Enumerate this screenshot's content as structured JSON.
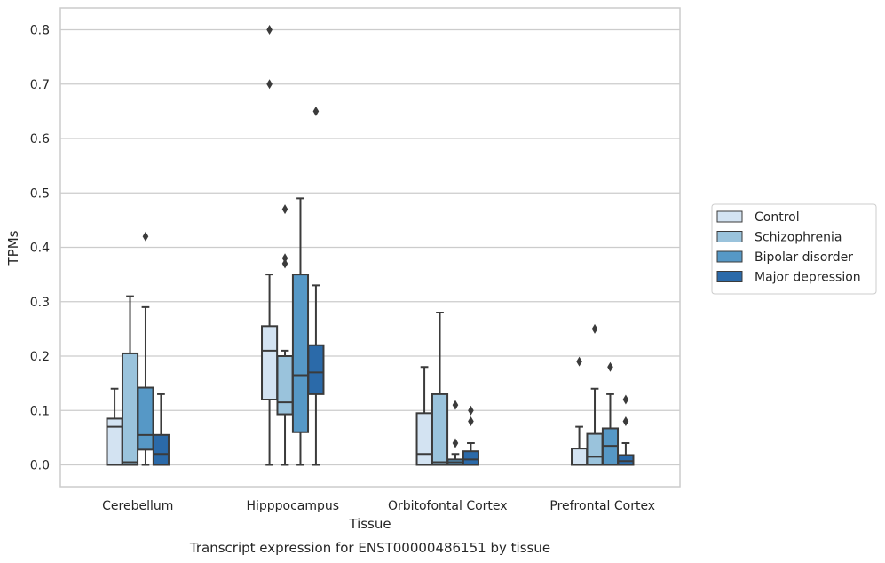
{
  "caption": "Transcript expression for ENST00000486151 by tissue",
  "chart_data": {
    "type": "box",
    "title": "",
    "xlabel": "Tissue",
    "ylabel": "TPMs",
    "ylim": [
      -0.04,
      0.84
    ],
    "yticks": [
      "0.0",
      "0.1",
      "0.2",
      "0.3",
      "0.4",
      "0.5",
      "0.6",
      "0.7",
      "0.8"
    ],
    "grid": "horizontal",
    "legend_position": "right",
    "categories": [
      "Cerebellum",
      "Hipppocampus",
      "Orbitofontal Cortex",
      "Prefrontal Cortex"
    ],
    "series": [
      {
        "name": "Control",
        "color": "#d3e3f2",
        "boxes": [
          {
            "whislo": 0.0,
            "q1": 0.0,
            "med": 0.07,
            "q3": 0.085,
            "whishi": 0.14,
            "fliers": []
          },
          {
            "whislo": 0.0,
            "q1": 0.12,
            "med": 0.21,
            "q3": 0.255,
            "whishi": 0.35,
            "fliers": [
              0.7,
              0.8
            ]
          },
          {
            "whislo": 0.0,
            "q1": 0.0,
            "med": 0.02,
            "q3": 0.095,
            "whishi": 0.18,
            "fliers": []
          },
          {
            "whislo": 0.0,
            "q1": 0.0,
            "med": 0.0,
            "q3": 0.03,
            "whishi": 0.07,
            "fliers": [
              0.19
            ]
          }
        ]
      },
      {
        "name": "Schizophrenia",
        "color": "#9ac3dc",
        "boxes": [
          {
            "whislo": 0.0,
            "q1": 0.0,
            "med": 0.005,
            "q3": 0.205,
            "whishi": 0.31,
            "fliers": []
          },
          {
            "whislo": 0.0,
            "q1": 0.093,
            "med": 0.115,
            "q3": 0.2,
            "whishi": 0.21,
            "fliers": [
              0.37,
              0.38,
              0.47
            ]
          },
          {
            "whislo": 0.0,
            "q1": 0.0,
            "med": 0.005,
            "q3": 0.13,
            "whishi": 0.28,
            "fliers": []
          },
          {
            "whislo": 0.0,
            "q1": 0.0,
            "med": 0.015,
            "q3": 0.057,
            "whishi": 0.14,
            "fliers": [
              0.25
            ]
          }
        ]
      },
      {
        "name": "Bipolar disorder",
        "color": "#5698c6",
        "boxes": [
          {
            "whislo": 0.0,
            "q1": 0.028,
            "med": 0.055,
            "q3": 0.142,
            "whishi": 0.29,
            "fliers": [
              0.42
            ]
          },
          {
            "whislo": 0.0,
            "q1": 0.06,
            "med": 0.165,
            "q3": 0.35,
            "whishi": 0.49,
            "fliers": []
          },
          {
            "whislo": 0.0,
            "q1": 0.0,
            "med": 0.005,
            "q3": 0.01,
            "whishi": 0.02,
            "fliers": [
              0.04,
              0.11
            ]
          },
          {
            "whislo": 0.0,
            "q1": 0.0,
            "med": 0.035,
            "q3": 0.067,
            "whishi": 0.13,
            "fliers": [
              0.18
            ]
          }
        ]
      },
      {
        "name": "Major depression",
        "color": "#2b6aa9",
        "boxes": [
          {
            "whislo": 0.0,
            "q1": 0.0,
            "med": 0.02,
            "q3": 0.055,
            "whishi": 0.13,
            "fliers": []
          },
          {
            "whislo": 0.0,
            "q1": 0.13,
            "med": 0.17,
            "q3": 0.22,
            "whishi": 0.33,
            "fliers": [
              0.65
            ]
          },
          {
            "whislo": 0.0,
            "q1": 0.0,
            "med": 0.01,
            "q3": 0.025,
            "whishi": 0.04,
            "fliers": [
              0.08,
              0.1
            ]
          },
          {
            "whislo": 0.0,
            "q1": 0.0,
            "med": 0.007,
            "q3": 0.018,
            "whishi": 0.04,
            "fliers": [
              0.08,
              0.12
            ]
          }
        ]
      }
    ]
  }
}
